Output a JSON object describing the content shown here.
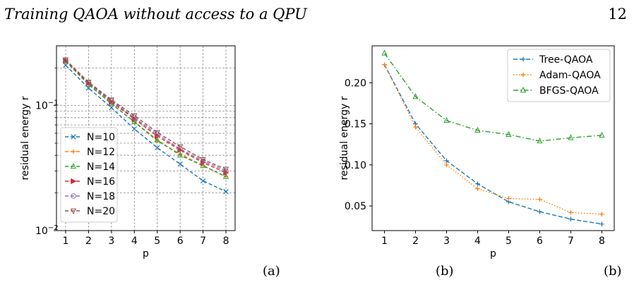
{
  "header": {
    "title": "Training QAOA without access to a QPU",
    "page_number": "12"
  },
  "captions": {
    "left": "(a)",
    "right": "(b)",
    "right_tail": "(b)"
  },
  "chart_data": [
    {
      "type": "line",
      "xlabel": "p",
      "ylabel": "residual energy r",
      "yscale": "log",
      "xlim": [
        0.6,
        8.4
      ],
      "ylim": [
        0.01,
        0.3
      ],
      "grid": true,
      "legend_position": "bottom-left",
      "x_ticks": [
        1,
        2,
        3,
        4,
        5,
        6,
        7,
        8
      ],
      "y_ticks": [
        {
          "value": 0.1,
          "base": "10",
          "exp": "−1"
        },
        {
          "value": 0.01,
          "base": "10",
          "exp": "−2"
        }
      ],
      "x": [
        1,
        2,
        3,
        4,
        5,
        6,
        7,
        8
      ],
      "series": [
        {
          "name": "N=10",
          "color": "#1f77b4",
          "marker": "x",
          "values": [
            0.21,
            0.138,
            0.096,
            0.065,
            0.046,
            0.034,
            0.025,
            0.0205
          ]
        },
        {
          "name": "N=12",
          "color": "#ff7f0e",
          "marker": "+",
          "values": [
            0.225,
            0.147,
            0.103,
            0.074,
            0.052,
            0.041,
            0.033,
            0.027
          ]
        },
        {
          "name": "N=14",
          "color": "#2ca02c",
          "marker": "triangle-up",
          "values": [
            0.227,
            0.147,
            0.104,
            0.074,
            0.053,
            0.04,
            0.033,
            0.027
          ]
        },
        {
          "name": "N=16",
          "color": "#d62728",
          "marker": "triangle-right",
          "values": [
            0.229,
            0.151,
            0.107,
            0.078,
            0.057,
            0.044,
            0.035,
            0.029
          ]
        },
        {
          "name": "N=18",
          "color": "#9467bd",
          "marker": "circle",
          "values": [
            0.231,
            0.152,
            0.109,
            0.08,
            0.059,
            0.045,
            0.036,
            0.03
          ]
        },
        {
          "name": "N=20",
          "color": "#8c564b",
          "marker": "triangle-down",
          "values": [
            0.232,
            0.154,
            0.111,
            0.083,
            0.061,
            0.047,
            0.037,
            0.031
          ]
        }
      ]
    },
    {
      "type": "line",
      "xlabel": "p",
      "ylabel": "residual energy r",
      "xlim": [
        0.6,
        8.4
      ],
      "ylim": [
        0.02,
        0.245
      ],
      "grid": false,
      "legend_position": "top-right",
      "x_ticks": [
        1,
        2,
        3,
        4,
        5,
        6,
        7,
        8
      ],
      "y_ticks": [
        {
          "value": 0.05,
          "label": "0.05"
        },
        {
          "value": 0.1,
          "label": "0.10"
        },
        {
          "value": 0.15,
          "label": "0.15"
        },
        {
          "value": 0.2,
          "label": "0.20"
        }
      ],
      "x": [
        1,
        2,
        3,
        4,
        5,
        6,
        7,
        8
      ],
      "series": [
        {
          "name": "Tree-QAOA",
          "color": "#1f77b4",
          "marker": "+",
          "dash": "6,3",
          "values": [
            0.222,
            0.15,
            0.105,
            0.077,
            0.055,
            0.043,
            0.034,
            0.028
          ]
        },
        {
          "name": "Adam-QAOA",
          "color": "#ff7f0e",
          "marker": "+",
          "dash": "1.5,2.5",
          "values": [
            0.222,
            0.146,
            0.1,
            0.071,
            0.059,
            0.058,
            0.042,
            0.04
          ]
        },
        {
          "name": "BFGS-QAOA",
          "color": "#2ca02c",
          "marker": "triangle-up",
          "dash": "7,3,1.5,3",
          "values": [
            0.236,
            0.183,
            0.154,
            0.142,
            0.137,
            0.129,
            0.133,
            0.136
          ]
        }
      ]
    }
  ]
}
